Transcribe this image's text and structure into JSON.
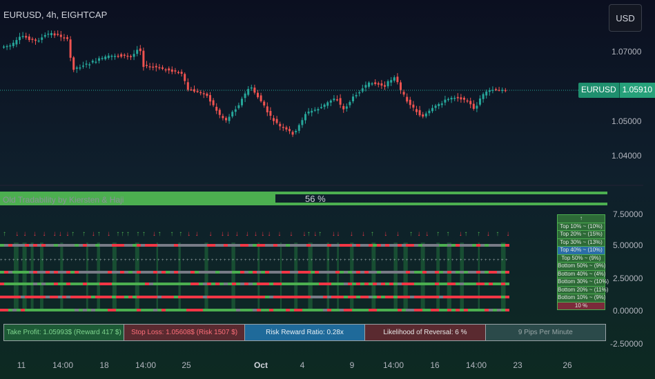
{
  "header": {
    "symbol_title": "EURUSD, 4h, EIGHTCAP",
    "currency": "USD"
  },
  "price_axis": [
    "1.07000",
    "1.05000",
    "1.04000"
  ],
  "last_price": {
    "symbol": "EURUSD",
    "value": "1.05910"
  },
  "tradability": {
    "label": "Old Tradability by Kiersten & Haji",
    "percent": "56 %",
    "fill_fraction": 0.56
  },
  "indicator_axis": [
    "7.50000",
    "5.00000",
    "2.50000",
    "0.00000",
    "-2.50000"
  ],
  "ranking_table": {
    "header": "↑",
    "rows": [
      "Top 10% ~ (10%)",
      "Top 20% ~ (15%)",
      "Top 30% ~ (13%)",
      "Top 40% ~ (10%)",
      "Top 50% ~ (9%)",
      "Bottom 50% ~ (9%)",
      "Bottom 40% ~ (4%)",
      "Bottom 30% ~ (10%)",
      "Bottom 20% ~ (11%)",
      "Bottom 10% ~ (9%)",
      "10 %"
    ],
    "selected_index": 3
  },
  "stats": {
    "take_profit": "Take Profit: 1.05993$   (Reward 417 $)",
    "stop_loss": "Stop Loss: 1.05608$   (Risk 1507 $)",
    "risk_reward": "Risk Reward Ratio: 0.28x",
    "reversal": "Likelihood of Reversal: 6 %",
    "pips": "9 Pips Per Minute"
  },
  "time_axis": [
    "11",
    "14:00",
    "18",
    "14:00",
    "25",
    "Oct",
    "4",
    "9",
    "14:00",
    "16",
    "14:00",
    "23",
    "26"
  ],
  "colors": {
    "up": "#26a69a",
    "down": "#ef5350",
    "green": "#4caf50",
    "red": "#f23645",
    "grey": "#787b86"
  }
}
